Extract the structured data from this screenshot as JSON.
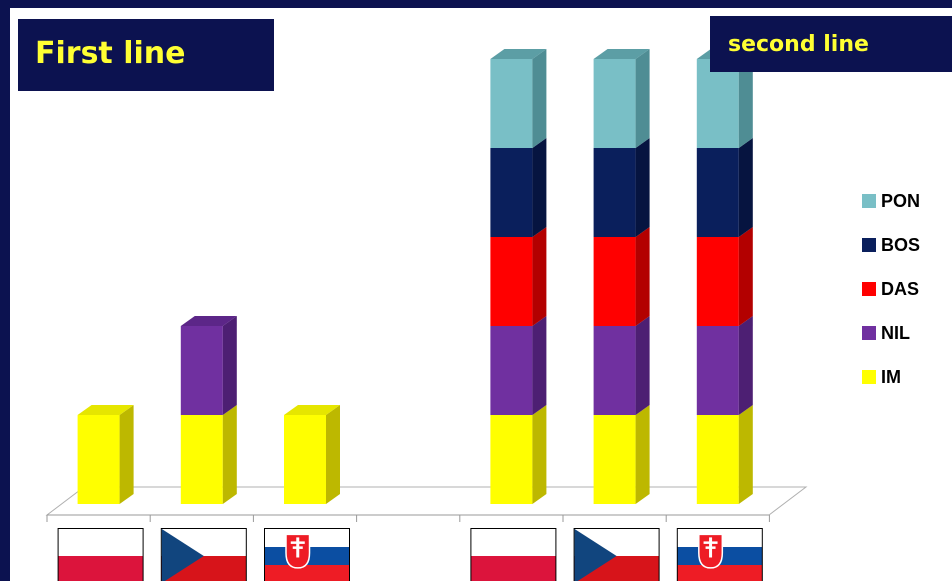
{
  "titles": {
    "first": "First line",
    "second": "second line"
  },
  "colors": {
    "background": "#0c1250",
    "title_text": "#ffff33"
  },
  "chart_data": {
    "type": "bar",
    "stacked": true,
    "three_d": true,
    "categories": [
      "Poland",
      "Czech Republic",
      "Slovakia",
      "",
      "Poland",
      "Czech Republic",
      "Slovakia"
    ],
    "category_labels_shown_as": "flags",
    "groups": [
      "First line",
      "second line"
    ],
    "series": [
      {
        "name": "IM",
        "color": "#ffff00",
        "side": "#bdb800",
        "top": "#e6e600",
        "values": [
          1,
          1,
          1,
          0,
          1,
          1,
          1
        ]
      },
      {
        "name": "NIL",
        "color": "#7030a0",
        "side": "#4d1f73",
        "top": "#5c2688",
        "values": [
          0,
          1,
          0,
          0,
          1,
          1,
          1
        ]
      },
      {
        "name": "DAS",
        "color": "#ff0000",
        "side": "#b30000",
        "top": "#d10000",
        "values": [
          0,
          0,
          0,
          0,
          1,
          1,
          1
        ]
      },
      {
        "name": "BOS",
        "color": "#0a1f5c",
        "side": "#061440",
        "top": "#08194c",
        "values": [
          0,
          0,
          0,
          0,
          1,
          1,
          1
        ]
      },
      {
        "name": "PON",
        "color": "#79bfc6",
        "side": "#4f8d94",
        "top": "#5c9ea5",
        "values": [
          0,
          0,
          0,
          0,
          1,
          1,
          1
        ]
      }
    ],
    "legend": {
      "position": "right",
      "order": [
        "PON",
        "BOS",
        "DAS",
        "NIL",
        "IM"
      ]
    },
    "ylim": [
      0,
      5
    ],
    "grid": false
  }
}
